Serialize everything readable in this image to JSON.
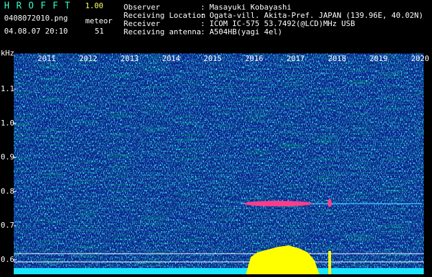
{
  "header": {
    "app": "H R O F F T",
    "version": "1.00",
    "file": "0408072010.png",
    "counter_label": "meteor",
    "timestamp": "04.08.07 20:10",
    "counter": "51"
  },
  "separator": ":",
  "info": [
    {
      "label": "Observer",
      "value": "Masayuki Kobayashi"
    },
    {
      "label": "Receiving Location",
      "value": "Ogata-vill. Akita-Pref. JAPAN (139.96E, 40.02N)"
    },
    {
      "label": "Receiver",
      "value": "ICOM IC-575 53.7492(@LCD)MHz USB"
    },
    {
      "label": "Receiving antenna",
      "value": "A504HB(yagi 4el)"
    }
  ],
  "axis": {
    "unit": "kHz",
    "ticks": [
      0.6,
      0.7,
      0.8,
      0.9,
      {
        "value": 1,
        "label": "1.0"
      },
      1.1
    ]
  },
  "time_labels": [
    "2011",
    "2012",
    "2013",
    "2014",
    "2015",
    "2016",
    "2017",
    "2018",
    "2019",
    "2020"
  ]
}
